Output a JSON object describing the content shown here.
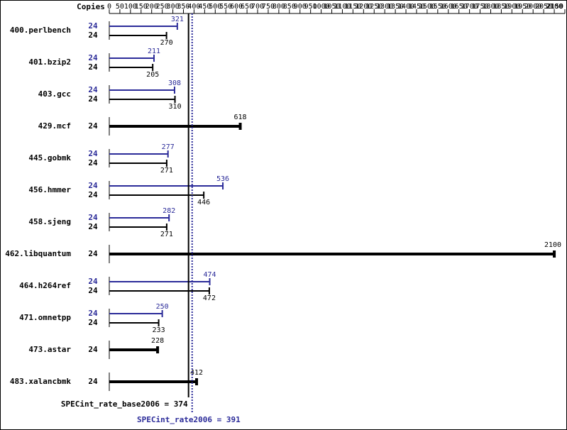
{
  "chart_data": {
    "type": "hbar",
    "x_header": "Copies",
    "xlim": [
      0,
      2150
    ],
    "xticks": [
      0,
      50,
      100,
      150,
      200,
      250,
      300,
      350,
      400,
      450,
      500,
      550,
      600,
      650,
      700,
      750,
      800,
      850,
      900,
      950,
      1000,
      1050,
      1100,
      1150,
      1200,
      1250,
      1300,
      1350,
      1400,
      1450,
      1500,
      1550,
      1600,
      1650,
      1700,
      1750,
      1800,
      1850,
      1900,
      1950,
      2000,
      2050,
      2100,
      2150
    ],
    "categories": [
      "400.perlbench",
      "401.bzip2",
      "403.gcc",
      "429.mcf",
      "445.gobmk",
      "456.hmmer",
      "458.sjeng",
      "462.libquantum",
      "464.h264ref",
      "471.omnetpp",
      "473.astar",
      "483.xalancbmk"
    ],
    "series": [
      {
        "color": "#2b2b99",
        "copies": [
          24,
          24,
          24,
          null,
          24,
          24,
          24,
          null,
          24,
          24,
          null,
          null
        ],
        "values": [
          321,
          211,
          308,
          null,
          277,
          536,
          282,
          null,
          474,
          250,
          null,
          null
        ]
      },
      {
        "color": "#000000",
        "copies": [
          24,
          24,
          24,
          24,
          24,
          24,
          24,
          24,
          24,
          24,
          24,
          24
        ],
        "values": [
          270,
          205,
          310,
          618,
          271,
          446,
          271,
          2100,
          472,
          233,
          228,
          412
        ]
      }
    ],
    "reference_lines": [
      {
        "label": "SPECint_rate_base2006 = 374",
        "value": 374,
        "color": "#000000",
        "style": "solid"
      },
      {
        "label": "SPECint_rate2006 = 391",
        "value": 391,
        "color": "#2b2b99",
        "style": "dotted"
      }
    ]
  }
}
